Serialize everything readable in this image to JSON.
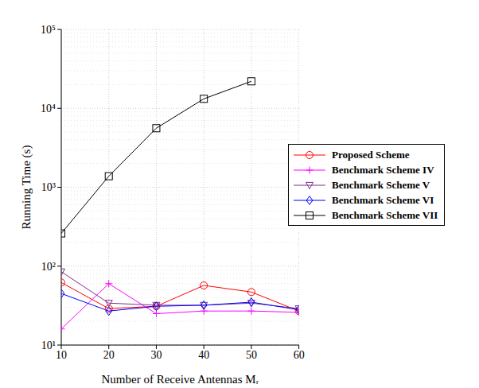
{
  "chart_data": {
    "type": "line",
    "x_label": "Number of Receive Antennas Mᵣ",
    "y_label": "Running Time (s)",
    "x": [
      10,
      20,
      30,
      40,
      50,
      60
    ],
    "xlim": [
      10,
      60
    ],
    "xticks": [
      10,
      20,
      30,
      40,
      50,
      60
    ],
    "ylim": [
      10,
      100000
    ],
    "yticks": [
      {
        "value": 10,
        "label": "10¹"
      },
      {
        "value": 100,
        "label": "10²"
      },
      {
        "value": 1000,
        "label": "10³"
      },
      {
        "value": 10000,
        "label": "10⁴"
      },
      {
        "value": 100000,
        "label": "10⁵"
      }
    ],
    "log": "y",
    "grid": true,
    "legend": "right",
    "series": [
      {
        "name": "Proposed Scheme",
        "color": "#ff0000",
        "marker": "circle",
        "values": [
          62,
          29,
          31,
          57,
          47,
          27
        ]
      },
      {
        "name": "Benchmark Scheme IV",
        "color": "#ff00ff",
        "marker": "plus",
        "values": [
          16,
          60,
          25,
          27,
          27,
          26
        ]
      },
      {
        "name": "Benchmark Scheme V",
        "color": "#7e2f8e",
        "marker": "triangle-down",
        "values": [
          85,
          34,
          32,
          32,
          34,
          29
        ]
      },
      {
        "name": "Benchmark Scheme VI",
        "color": "#0000ff",
        "marker": "diamond",
        "values": [
          45,
          27,
          31,
          32,
          35,
          28
        ]
      },
      {
        "name": "Benchmark Scheme VII",
        "color": "#000000",
        "marker": "square",
        "values": [
          260,
          1380,
          5600,
          13200,
          22000,
          null
        ]
      }
    ]
  }
}
